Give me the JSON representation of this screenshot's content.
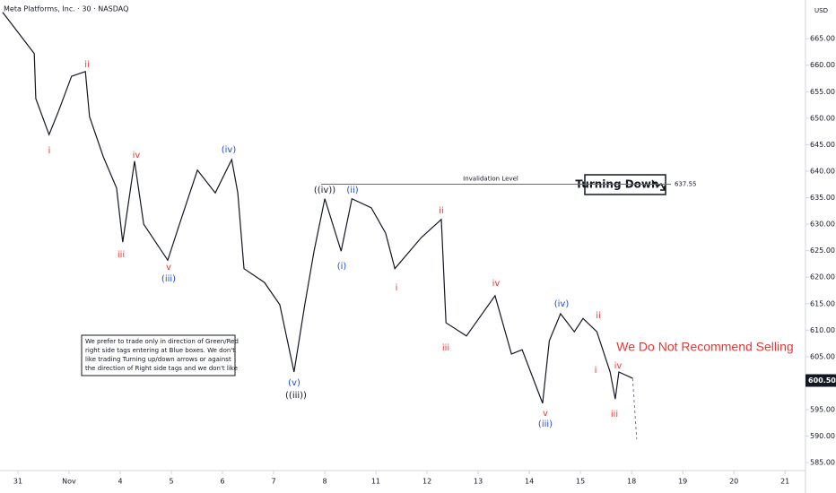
{
  "chart_data": {
    "type": "line",
    "title": "Meta Platforms, Inc. · 30 · NASDAQ",
    "currency": "USD",
    "x": [
      -0.3,
      0.32,
      0.35,
      0.61,
      0.79,
      1.05,
      1.32,
      1.4,
      1.67,
      1.93,
      2.05,
      2.28,
      2.46,
      2.93,
      3.16,
      3.51,
      3.86,
      4.18,
      4.3,
      4.42,
      4.82,
      5.12,
      5.4,
      5.61,
      5.79,
      6.0,
      6.32,
      6.53,
      6.91,
      7.19,
      7.37,
      7.89,
      8.28,
      8.37,
      8.77,
      9.33,
      9.65,
      9.86,
      10.26,
      10.39,
      10.61,
      10.88,
      11.05,
      11.32,
      11.58,
      11.68,
      11.75,
      12.02,
      12.1
    ],
    "series": [
      {
        "color": "#131722",
        "values": [
          670,
          662.2,
          653.7,
          646.9,
          651.2,
          657.9,
          658.8,
          650.3,
          642.7,
          636.8,
          626.6,
          641.9,
          630,
          623.2,
          630,
          640.2,
          635.9,
          642.2,
          635.9,
          621.6,
          619,
          614.8,
          602.1,
          614.8,
          624.9,
          634.8,
          624.9,
          634.8,
          633.1,
          628.3,
          621.6,
          627.5,
          630.9,
          611.4,
          608.9,
          616.5,
          605.5,
          606.3,
          596.2,
          608,
          613.1,
          609.7,
          612.2,
          609.7,
          602.1,
          597,
          602.1,
          600.9,
          null
        ]
      },
      {
        "color": "#787b86",
        "dashed": true,
        "values": [
          null,
          null,
          null,
          null,
          null,
          null,
          null,
          null,
          null,
          null,
          null,
          null,
          null,
          null,
          null,
          null,
          null,
          null,
          null,
          null,
          null,
          null,
          null,
          null,
          null,
          null,
          null,
          null,
          null,
          null,
          null,
          null,
          null,
          null,
          null,
          null,
          null,
          null,
          null,
          null,
          null,
          null,
          null,
          null,
          null,
          null,
          null,
          600.9,
          589.4
        ]
      }
    ],
    "xlim": [
      -0.35,
      15.4
    ],
    "xticks": [
      {
        "value": 0,
        "label": "31"
      },
      {
        "value": 1,
        "label": "Nov"
      },
      {
        "value": 2,
        "label": "4"
      },
      {
        "value": 3,
        "label": "5"
      },
      {
        "value": 4,
        "label": "6"
      },
      {
        "value": 5,
        "label": "7"
      },
      {
        "value": 6,
        "label": "8"
      },
      {
        "value": 7,
        "label": "11"
      },
      {
        "value": 8,
        "label": "12"
      },
      {
        "value": 9,
        "label": "13"
      },
      {
        "value": 10,
        "label": "14"
      },
      {
        "value": 11,
        "label": "15"
      },
      {
        "value": 12,
        "label": "18"
      },
      {
        "value": 13,
        "label": "19"
      },
      {
        "value": 14,
        "label": "20"
      },
      {
        "value": 15,
        "label": "21"
      }
    ],
    "ylim": [
      583.5,
      672.3
    ],
    "yticks": [
      {
        "value": 585,
        "label": "585.00"
      },
      {
        "value": 590,
        "label": "590.00"
      },
      {
        "value": 595,
        "label": "595.00"
      },
      {
        "value": 600,
        "label": "600.00"
      },
      {
        "value": 605,
        "label": "605.00"
      },
      {
        "value": 610,
        "label": "610.00"
      },
      {
        "value": 615,
        "label": "615.00"
      },
      {
        "value": 620,
        "label": "620.00"
      },
      {
        "value": 625,
        "label": "625.00"
      },
      {
        "value": 630,
        "label": "630.00"
      },
      {
        "value": 635,
        "label": "635.00"
      },
      {
        "value": 640,
        "label": "640.00"
      },
      {
        "value": 645,
        "label": "645.00"
      },
      {
        "value": 650,
        "label": "650.00"
      },
      {
        "value": 655,
        "label": "655.00"
      },
      {
        "value": 660,
        "label": "660.00"
      },
      {
        "value": 665,
        "label": "665.00"
      }
    ],
    "last_price": {
      "value": 600.5,
      "label": "600.50"
    },
    "invalidation": {
      "text": "Invalidation Level",
      "value": 637.55,
      "label": "637.55",
      "color": "#e53935"
    },
    "signal": "Turning Down",
    "warning": "We Do Not Recommend Selling",
    "note": [
      "We prefer to trade only in direction of Green/Red",
      "right side tags entering at Blue boxes. We don't",
      "like trading Turning up/down arrows or against",
      "the direction of Right side tags and we don't like"
    ],
    "annotations": [
      {
        "text": "i",
        "color": "#e53935"
      },
      {
        "text": "ii",
        "color": "#e53935"
      },
      {
        "text": "iii",
        "color": "#e53935"
      },
      {
        "text": "iv",
        "color": "#e53935"
      },
      {
        "text": "v",
        "color": "#e53935"
      },
      {
        "text": "(iii)",
        "color": "#1e4bd2"
      },
      {
        "text": "(iv)",
        "color": "#1e4bd2"
      },
      {
        "text": "((iv))",
        "color": "#131722"
      },
      {
        "text": "(ii)",
        "color": "#1e4bd2"
      },
      {
        "text": "(i)",
        "color": "#1e4bd2"
      },
      {
        "text": "(v)",
        "color": "#1e4bd2"
      },
      {
        "text": "((iii))",
        "color": "#131722"
      },
      {
        "text": "ii",
        "color": "#e53935"
      },
      {
        "text": "i",
        "color": "#e53935"
      },
      {
        "text": "iii",
        "color": "#e53935"
      },
      {
        "text": "iv",
        "color": "#e53935"
      },
      {
        "text": "(iv)",
        "color": "#1e4bd2"
      },
      {
        "text": "v",
        "color": "#e53935"
      },
      {
        "text": "(iii)",
        "color": "#1e4bd2"
      },
      {
        "text": "ii",
        "color": "#e53935"
      },
      {
        "text": "i",
        "color": "#e53935"
      },
      {
        "text": "iv",
        "color": "#e53935"
      },
      {
        "text": "iii",
        "color": "#e53935"
      }
    ]
  }
}
